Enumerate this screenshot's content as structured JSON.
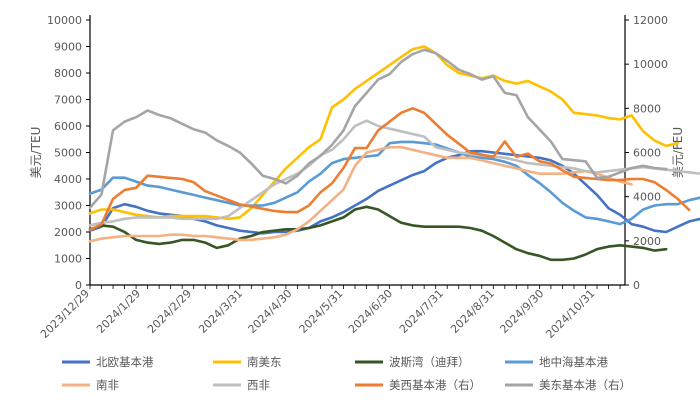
{
  "chart_data": {
    "type": "line",
    "title": "",
    "ylabel_left": "美元/TEU",
    "ylabel_right": "美元/FEU",
    "ylim_left": [
      0,
      10000
    ],
    "ylim_right": [
      0,
      12000
    ],
    "yticks_left": [
      "0",
      "1000",
      "2000",
      "3000",
      "4000",
      "5000",
      "6000",
      "7000",
      "8000",
      "9000",
      "10000"
    ],
    "yticks_right": [
      "0",
      "2000",
      "4000",
      "6000",
      "8000",
      "10000",
      "12000"
    ],
    "grid": false,
    "legend_position": "bottom",
    "x_start": "2023/12/29",
    "x_end": "2024/11/15",
    "x_step_days": 7,
    "x_tick_labels": [
      "2023/12/29",
      "2024/1/29",
      "2024/2/29",
      "2024/3/31",
      "2024/4/30",
      "2024/5/31",
      "2024/6/30",
      "2024/7/31",
      "2024/8/31",
      "2024/9/30",
      "2024/10/31"
    ],
    "series": [
      {
        "name": "北欧基本港",
        "axis": "left",
        "color": "#4472C4",
        "values": [
          2050,
          2200,
          2900,
          3050,
          2950,
          2800,
          2700,
          2650,
          2600,
          2500,
          2400,
          2250,
          2150,
          2050,
          2000,
          1950,
          2000,
          2000,
          2050,
          2150,
          2400,
          2550,
          2750,
          3000,
          3250,
          3550,
          3750,
          3950,
          4150,
          4300,
          4600,
          4800,
          4900,
          5050,
          5050,
          5000,
          4950,
          4900,
          4850,
          4800,
          4700,
          4500,
          4200,
          3800,
          3400,
          2900,
          2650,
          2300,
          2200,
          2050,
          2000,
          2200,
          2400,
          2500,
          2500,
          2450,
          2900
        ]
      },
      {
        "name": "南美东",
        "axis": "left",
        "color": "#FFC000",
        "values": [
          2700,
          2850,
          2850,
          2750,
          2650,
          2600,
          2550,
          2600,
          2600,
          2600,
          2600,
          2550,
          2500,
          2550,
          2900,
          3400,
          3900,
          4400,
          4800,
          5200,
          5500,
          6700,
          7000,
          7400,
          7700,
          8000,
          8300,
          8600,
          8900,
          9000,
          8750,
          8300,
          8000,
          7900,
          7800,
          7900,
          7700,
          7600,
          7700,
          7500,
          7300,
          7000,
          6500,
          6450,
          6400,
          6300,
          6250,
          6400,
          5800,
          5450,
          5250,
          5350
        ]
      },
      {
        "name": "波斯湾（迪拜）",
        "axis": "left",
        "color": "#375623",
        "values": [
          2100,
          2250,
          2200,
          2000,
          1700,
          1600,
          1550,
          1600,
          1700,
          1700,
          1600,
          1400,
          1500,
          1750,
          1850,
          2000,
          2050,
          2100,
          2100,
          2150,
          2250,
          2400,
          2550,
          2850,
          2950,
          2850,
          2600,
          2350,
          2250,
          2200,
          2200,
          2200,
          2200,
          2150,
          2050,
          1850,
          1600,
          1350,
          1200,
          1100,
          950,
          950,
          1000,
          1150,
          1350,
          1450,
          1500,
          1450,
          1400,
          1300,
          1350
        ]
      },
      {
        "name": "地中海基本港",
        "axis": "left",
        "color": "#5B9BD5",
        "values": [
          3450,
          3600,
          4050,
          4050,
          3900,
          3750,
          3700,
          3600,
          3500,
          3400,
          3300,
          3200,
          3100,
          3000,
          3000,
          3000,
          3100,
          3300,
          3500,
          3900,
          4200,
          4600,
          4750,
          4800,
          4850,
          4900,
          5350,
          5400,
          5400,
          5350,
          5300,
          5150,
          5000,
          4850,
          4800,
          4750,
          4650,
          4500,
          4150,
          3850,
          3500,
          3100,
          2800,
          2550,
          2500,
          2400,
          2300,
          2500,
          2850,
          3000,
          3050,
          3050,
          3200,
          3300
        ]
      },
      {
        "name": "南非",
        "axis": "left",
        "color": "#F4B183",
        "values": [
          1650,
          1750,
          1800,
          1850,
          1850,
          1850,
          1850,
          1900,
          1900,
          1850,
          1850,
          1800,
          1750,
          1700,
          1700,
          1750,
          1800,
          1900,
          2100,
          2400,
          2800,
          3200,
          3600,
          4500,
          5000,
          5100,
          5200,
          5200,
          5100,
          5000,
          4900,
          4800,
          4800,
          4800,
          4700,
          4600,
          4500,
          4400,
          4300,
          4200,
          4200,
          4200,
          4250,
          4300,
          4200,
          4050,
          3900,
          3800
        ]
      },
      {
        "name": "西非",
        "axis": "left",
        "color": "#BFBFBF",
        "values": [
          2250,
          2350,
          2400,
          2500,
          2550,
          2550,
          2550,
          2550,
          2500,
          2500,
          2500,
          2500,
          2600,
          2900,
          3200,
          3500,
          3800,
          4000,
          4200,
          4500,
          4900,
          5100,
          5500,
          6000,
          6200,
          6000,
          5900,
          5800,
          5700,
          5600,
          5200,
          5100,
          5000,
          4950,
          4900,
          4850,
          4800,
          4700,
          4600,
          4550,
          4500,
          4450,
          4400,
          4300,
          4250,
          4300,
          4350,
          4400,
          4450,
          4400,
          4350,
          4300,
          4250,
          4200
        ]
      },
      {
        "name": "美西基本港（右）",
        "axis": "right",
        "color": "#ED7D31",
        "values": [
          2500,
          2750,
          3900,
          4300,
          4400,
          4950,
          4900,
          4850,
          4800,
          4650,
          4250,
          4050,
          3850,
          3650,
          3550,
          3450,
          3350,
          3300,
          3300,
          3600,
          4200,
          4600,
          5300,
          6200,
          6200,
          7000,
          7400,
          7800,
          8000,
          7800,
          7300,
          6800,
          6400,
          6000,
          5900,
          5800,
          6500,
          5800,
          5950,
          5600,
          5500,
          5200,
          4900,
          4850,
          4800,
          4750,
          4750,
          4800,
          4800,
          4650,
          4300,
          3900,
          3400
        ]
      },
      {
        "name": "美东基本港（右）",
        "axis": "right",
        "color": "#A5A5A5",
        "values": [
          3500,
          4100,
          7000,
          7400,
          7600,
          7900,
          7700,
          7550,
          7300,
          7050,
          6900,
          6550,
          6300,
          6000,
          5500,
          4950,
          4800,
          4600,
          4950,
          5500,
          5850,
          6350,
          7000,
          8100,
          8700,
          9300,
          9550,
          10100,
          10450,
          10650,
          10500,
          10150,
          9750,
          9550,
          9300,
          9450,
          8700,
          8600,
          7600,
          7050,
          6500,
          5700,
          5650,
          5600,
          4850,
          4900,
          5100,
          5300,
          5400,
          5300,
          5250
        ]
      }
    ]
  }
}
